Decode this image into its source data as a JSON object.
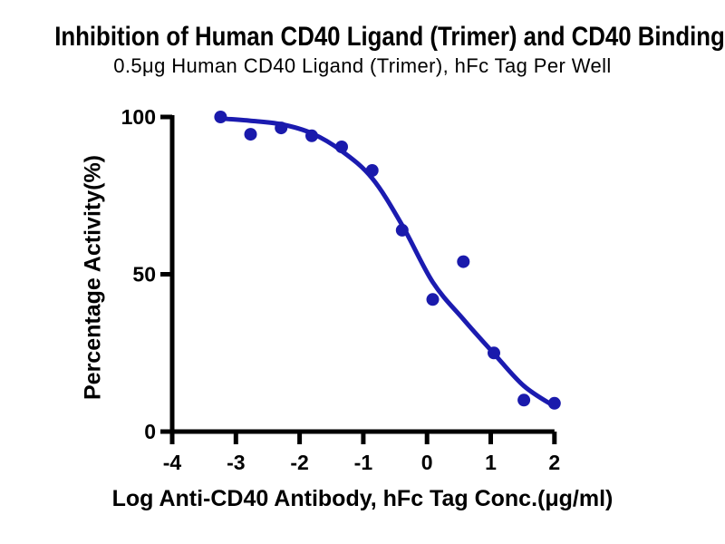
{
  "chart_data": {
    "type": "scatter",
    "title": "Inhibition of Human CD40 Ligand (Trimer) and CD40 Binding",
    "subtitle": "0.5μg Human CD40 Ligand (Trimer), hFc Tag Per Well",
    "xlabel": "Log Anti-CD40 Antibody, hFc Tag Conc.(μg/ml)",
    "ylabel": "Percentage Activity(%)",
    "xlim": [
      -4,
      2
    ],
    "ylim": [
      0,
      100
    ],
    "x_ticks": [
      -4,
      -3,
      -2,
      -1,
      0,
      1,
      2
    ],
    "y_ticks": [
      0,
      50,
      100
    ],
    "grid": false,
    "legend": "none",
    "axis_color": "#000000",
    "series": [
      {
        "name": "Anti-CD40 Antibody, hFc Tag",
        "marker": "circle",
        "marker_color": "#1a1aac",
        "x": [
          -3.24,
          -2.77,
          -2.29,
          -1.81,
          -1.34,
          -0.86,
          -0.39,
          0.09,
          0.57,
          1.05,
          1.52,
          2.0
        ],
        "y": [
          100,
          94.5,
          96.5,
          94,
          90.5,
          83,
          64,
          42,
          54,
          25,
          10,
          9
        ]
      }
    ],
    "fit_curve": {
      "type": "four-parameter-logistic-fit",
      "color": "#1b1bb0",
      "points_x": [
        -3.24,
        -2.77,
        -2.29,
        -1.81,
        -1.34,
        -0.86,
        -0.39,
        0.09,
        0.57,
        1.05,
        1.52,
        2.0
      ],
      "points_y": [
        99.5,
        98.8,
        97.7,
        94.8,
        89.2,
        80.5,
        65.6,
        47.5,
        35.7,
        24.8,
        14.5,
        8.0
      ]
    }
  }
}
